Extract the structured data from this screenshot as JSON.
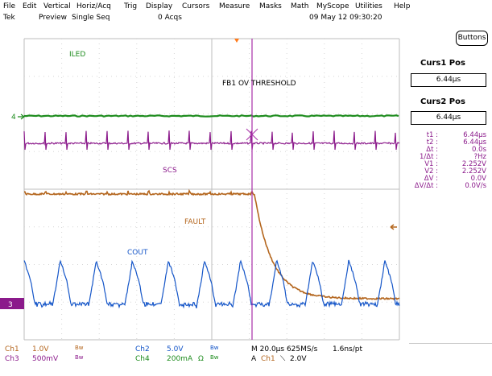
{
  "menu": [
    "File",
    "Edit",
    "Vertical",
    "Horiz/Acq",
    "Trig",
    "Display",
    "Cursors",
    "Measure",
    "Masks",
    "Math",
    "MyScope",
    "Utilities",
    "Help"
  ],
  "status": {
    "brand": "Tek",
    "mode": "Preview",
    "seq": "Single Seq",
    "acqs": "0 Acqs",
    "datetime": "09 May 12 09:30:20"
  },
  "side_panel": {
    "buttons_label": "Buttons",
    "curs1_title": "Curs1 Pos",
    "curs1_value": "6.44µs",
    "curs2_title": "Curs2 Pos",
    "curs2_value": "6.44µs",
    "measurements": [
      {
        "label": "t1 :",
        "value": "6.44µs"
      },
      {
        "label": "t2 :",
        "value": "6.44µs"
      },
      {
        "label": "Δt :",
        "value": "0.0s"
      },
      {
        "label": "1/Δt :",
        "value": "?Hz"
      },
      {
        "label": "V1 :",
        "value": "2.252V"
      },
      {
        "label": "V2 :",
        "value": "2.252V"
      },
      {
        "label": "ΔV :",
        "value": "0.0V"
      },
      {
        "label": "ΔV/Δt :",
        "value": "0.0V/s"
      }
    ]
  },
  "waveform_labels": {
    "iled": "ILED",
    "threshold": "FB1 OV THRESHOLD",
    "scs": "SCS",
    "fault": "FAULT",
    "cout": "COUT"
  },
  "channel_markers": {
    "ch4": "4",
    "ch3": "3"
  },
  "bottom": {
    "ch1": "Ch1",
    "ch1_scale": "1.0V",
    "ch1_bw": "Bw",
    "ch2": "Ch2",
    "ch2_scale": "5.0V",
    "ch2_bw": "Bw",
    "ch3": "Ch3",
    "ch3_scale": "500mV",
    "ch3_bw": "Bw",
    "ch4": "Ch4",
    "ch4_scale": "200mA",
    "ch4_ohm": "Ω",
    "ch4_bw": "Bw",
    "timebase": "M 20.0µs 625MS/s",
    "record": "1.6ns/pt",
    "trig_a": "A",
    "trig_ch": "Ch1",
    "trig_slope": "⟍",
    "trig_level": "2.0V"
  },
  "colors": {
    "ch1": "#b4661e",
    "ch2": "#1455c8",
    "ch3": "#8b1a8b",
    "ch4": "#1e8c1e",
    "cursor": "#a82ea8",
    "trigger": "#ff7a1a"
  }
}
